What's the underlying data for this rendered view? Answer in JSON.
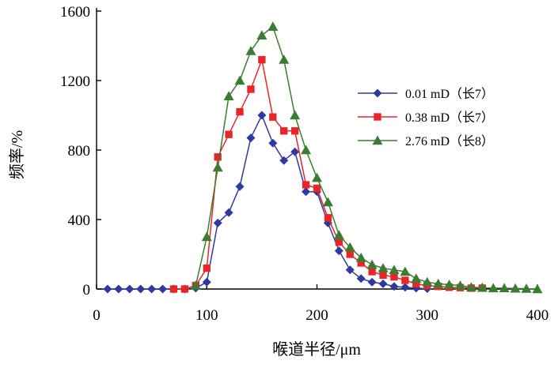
{
  "chart_data": {
    "type": "line",
    "title": "",
    "xlabel": "喉道半径/μm",
    "ylabel": "频率/%",
    "xlim": [
      0,
      400
    ],
    "ylim": [
      0,
      1600
    ],
    "xticks": [
      0,
      100,
      200,
      300,
      400
    ],
    "yticks": [
      0,
      400,
      800,
      1200,
      1600
    ],
    "xtick_labels": [
      "0",
      "100",
      "200",
      "300",
      "400"
    ],
    "ytick_labels": [
      "0",
      "400",
      "800",
      "1200",
      "1600"
    ],
    "legend_position": "right",
    "series": [
      {
        "name": "0.01 mD（长7）",
        "color": "#2e3a9e",
        "marker": "diamond",
        "x": [
          10,
          20,
          30,
          40,
          50,
          60,
          70,
          80,
          90,
          100,
          110,
          120,
          130,
          140,
          150,
          160,
          170,
          180,
          190,
          200,
          210,
          220,
          230,
          240,
          250,
          260,
          270,
          280,
          290,
          300
        ],
        "y": [
          0,
          0,
          0,
          0,
          0,
          0,
          0,
          0,
          5,
          40,
          380,
          440,
          590,
          870,
          1000,
          840,
          740,
          790,
          560,
          560,
          380,
          220,
          110,
          60,
          40,
          30,
          15,
          10,
          5,
          2
        ]
      },
      {
        "name": "0.38 mD（长7）",
        "color": "#e8262a",
        "marker": "square",
        "x": [
          70,
          80,
          90,
          100,
          110,
          120,
          130,
          140,
          150,
          160,
          170,
          180,
          190,
          200,
          210,
          220,
          230,
          240,
          250,
          260,
          270,
          280,
          290,
          300,
          310,
          320,
          330,
          340,
          350
        ],
        "y": [
          0,
          0,
          20,
          120,
          760,
          890,
          1020,
          1150,
          1320,
          990,
          910,
          910,
          600,
          580,
          410,
          270,
          200,
          150,
          100,
          80,
          70,
          50,
          30,
          20,
          15,
          10,
          8,
          5,
          5
        ]
      },
      {
        "name": "2.76 mD（长8）",
        "color": "#3a7d32",
        "marker": "triangle",
        "x": [
          90,
          100,
          110,
          120,
          130,
          140,
          150,
          160,
          170,
          180,
          190,
          200,
          210,
          220,
          230,
          240,
          250,
          260,
          270,
          280,
          290,
          300,
          310,
          320,
          330,
          340,
          350,
          360,
          370,
          380,
          390,
          400
        ],
        "y": [
          20,
          300,
          700,
          1110,
          1200,
          1370,
          1460,
          1510,
          1320,
          1000,
          800,
          640,
          500,
          310,
          240,
          180,
          140,
          120,
          110,
          100,
          60,
          40,
          30,
          25,
          20,
          10,
          8,
          5,
          5,
          3,
          2,
          0
        ]
      }
    ]
  }
}
